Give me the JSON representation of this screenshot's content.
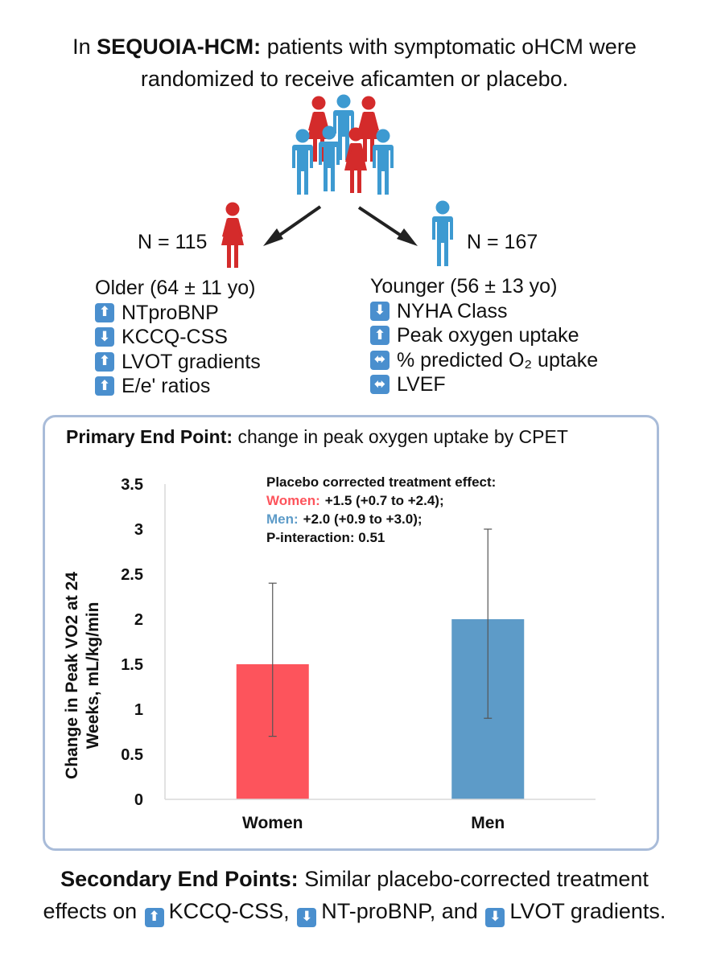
{
  "intro": {
    "trial_name": "SEQUOIA-HCM:",
    "line1_rest": "patients with symptomatic oHCM were",
    "line2": "randomized to receive aficamten or placebo."
  },
  "icons": {
    "women_color": "#d42b2b",
    "men_color": "#3d9ad1",
    "arrow_color": "#222222",
    "badge_color": "#4a8fce"
  },
  "women_group": {
    "n_label": "N = 115",
    "items": [
      {
        "arrow": "",
        "text": "Older  (64 ± 11 yo)"
      },
      {
        "arrow": "up",
        "text": "NTproBNP"
      },
      {
        "arrow": "down",
        "text": "KCCQ-CSS"
      },
      {
        "arrow": "up",
        "text": "LVOT gradients"
      },
      {
        "arrow": "up",
        "text": "E/e' ratios"
      }
    ]
  },
  "men_group": {
    "n_label": "N = 167",
    "items": [
      {
        "arrow": "",
        "text": "Younger (56 ± 13 yo)"
      },
      {
        "arrow": "down",
        "text": "NYHA Class"
      },
      {
        "arrow": "up",
        "text": "Peak oxygen uptake"
      },
      {
        "arrow": "both",
        "text": "% predicted O₂ uptake"
      },
      {
        "arrow": "both",
        "text": "LVEF"
      }
    ]
  },
  "primary": {
    "title_bold": "Primary End Point:",
    "title_rest": "change in peak oxygen uptake by CPET"
  },
  "chart_data": {
    "type": "bar",
    "categories": [
      "Women",
      "Men"
    ],
    "values": [
      1.5,
      2.0
    ],
    "error_low": [
      0.7,
      0.9
    ],
    "error_high": [
      2.4,
      3.0
    ],
    "colors": [
      "#fd545c",
      "#5d9bc8"
    ],
    "ylabel_line1": "Change in Peak VO2 at 24",
    "ylabel_line2": "Weeks, mL/kg/min",
    "xlabel": "",
    "ylim": [
      0,
      3.5
    ],
    "yticks": [
      "0",
      "0.5",
      "1",
      "1.5",
      "2",
      "2.5",
      "3",
      "3.5"
    ],
    "grid": false,
    "annotation": {
      "heading": "Placebo corrected treatment effect:",
      "women_label": "Women:",
      "women_value": "+1.5 (+0.7 to +2.4);",
      "men_label": "Men:",
      "men_value": "+2.0 (+0.9 to +3.0);",
      "p_line": "P-interaction: 0.51"
    }
  },
  "secondary": {
    "title_bold": "Secondary End Points:",
    "line1_rest": "Similar placebo-corrected treatment",
    "line2_prefix": "effects on",
    "item1": "KCCQ-CSS,",
    "item2": "NT-proBNP, and",
    "item3": "LVOT gradients."
  }
}
